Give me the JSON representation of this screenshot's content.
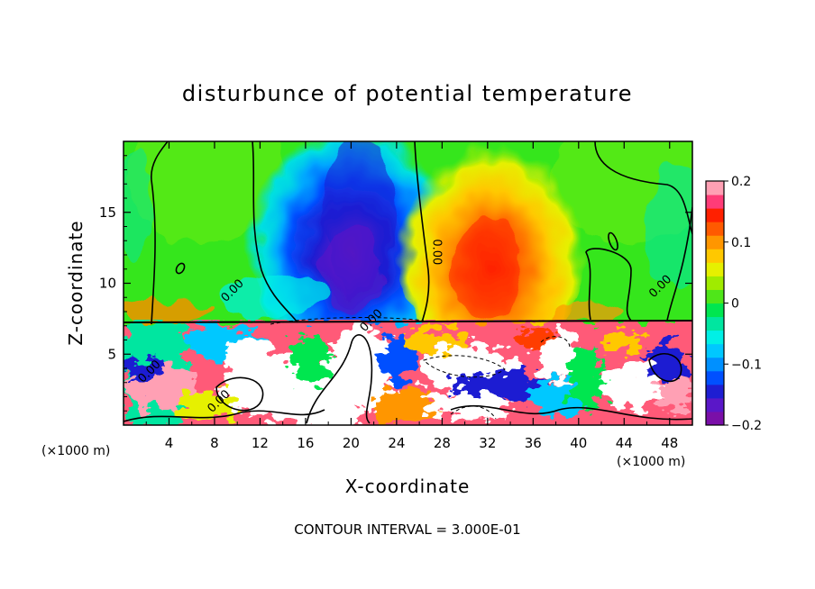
{
  "chart_data": {
    "type": "heatmap",
    "title": "disturbunce of potential temperature",
    "xlabel": "X-coordinate",
    "ylabel": "Z-coordinate",
    "x_unit_left": "(×1000 m)",
    "x_unit_right": "(×1000 m)",
    "note": "CONTOUR INTERVAL = 3.000E-01",
    "xlim": [
      0,
      50
    ],
    "ylim": [
      0,
      20
    ],
    "x_ticks": [
      4,
      8,
      12,
      16,
      20,
      24,
      28,
      32,
      36,
      40,
      44,
      48
    ],
    "y_ticks": [
      5,
      10,
      15
    ],
    "colorbar": {
      "min": -0.2,
      "max": 0.2,
      "tick_values": [
        0.2,
        0.1,
        0,
        -0.1,
        -0.2
      ],
      "tick_labels": [
        "0.2",
        "0.1",
        "0",
        "−0.1",
        "−0.2"
      ],
      "colors": [
        "#7a0fa8",
        "#5a17c8",
        "#1e1ed2",
        "#0050ff",
        "#0090ff",
        "#00c8ff",
        "#00f0e6",
        "#00e6a0",
        "#00e650",
        "#4fe619",
        "#a0eb00",
        "#e6f000",
        "#ffc800",
        "#ff9600",
        "#ff5a00",
        "#ff2000",
        "#ff3c78",
        "#ffa0b4"
      ]
    },
    "contour_labels": [
      {
        "text": "0.00",
        "x": 9.8,
        "y": 9.3
      },
      {
        "text": "0.00",
        "x": 27.2,
        "y": 12.2
      },
      {
        "text": "0.00",
        "x": 47.4,
        "y": 9.6
      },
      {
        "text": "0.00",
        "x": 22.0,
        "y": 7.2
      },
      {
        "text": "0.00",
        "x": 2.5,
        "y": 3.6
      },
      {
        "text": "0.00",
        "x": 8.6,
        "y": 1.5
      }
    ]
  }
}
